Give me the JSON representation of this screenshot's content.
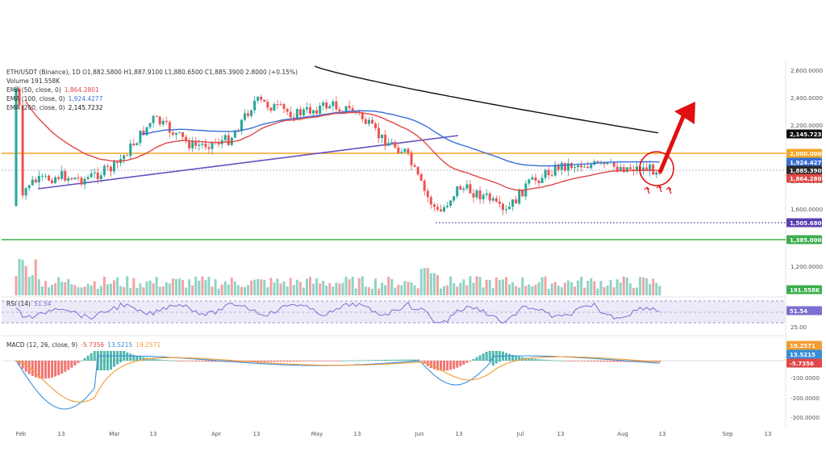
{
  "header": {
    "symbol_line": "ETH/USDT (Binance), 1D  O1,882.5800  H1,887.9100  L1,880.6500  C1,885.3900  2.8000 (+0.15%)",
    "volume_line": "Volume  191.558K",
    "ema50_label": "EMA (50, close, 0)",
    "ema50_value": "1,864.2801",
    "ema100_label": "EMA (100, close, 0)",
    "ema100_value": "1,924.4277",
    "ema200_label": "EMA (200, close, 0)",
    "ema200_value": "2,145.7232",
    "rsi_label": "RSI (14)",
    "rsi_value": "51.54",
    "macd_label": "MACD (12, 26, close, 9)",
    "macd_hist_value": "-5.7356",
    "macd_line_value": "13.5215",
    "macd_signal_value": "19.2571"
  },
  "x_axis": {
    "labels": [
      "Feb",
      "13",
      "Mar",
      "13",
      "Apr",
      "13",
      "May",
      "13",
      "Jun",
      "13",
      "Jul",
      "13",
      "Aug",
      "13",
      "Sep",
      "13"
    ]
  },
  "price_axis": {
    "ticks": [
      "2,600.0000",
      "2,400.0000",
      "2,200.0000",
      "2,000.0000",
      "1,800.0000",
      "1,600.0000",
      "1,400.0000",
      "1,200.0000"
    ]
  },
  "rsi_axis": {
    "ticks": [
      "25.00"
    ]
  },
  "macd_axis": {
    "ticks": [
      "-100.0000",
      "-200.0000",
      "-300.0000"
    ]
  },
  "price_badges": [
    {
      "text": "2,145.7232",
      "color": "#111111"
    },
    {
      "text": "2,000.0000",
      "color": "#f5a623"
    },
    {
      "text": "1,924.4277",
      "color": "#3a6fd8"
    },
    {
      "text": "1,885.3900",
      "color": "#2a2a2a"
    },
    {
      "text": "1,864.2801",
      "color": "#e04848"
    },
    {
      "text": "1,505.6800",
      "color": "#5b3fb0"
    },
    {
      "text": "1,385.0000",
      "color": "#3cae4e"
    },
    {
      "text": "191.558K",
      "color": "#3cae4e"
    },
    {
      "text": "51.54",
      "color": "#7b6fd0"
    },
    {
      "text": "19.2571",
      "color": "#f39c32"
    },
    {
      "text": "13.5215",
      "color": "#3a8ed8"
    },
    {
      "text": "-5.7356",
      "color": "#e04848"
    }
  ],
  "colors": {
    "up": "#26a69a",
    "down": "#ef5350",
    "ema50": "#e04848",
    "ema100": "#3a6fd8",
    "ema200": "#111111",
    "resistance": "#f5a623",
    "support": "#3cae4e",
    "trendline": "#6b4fbf",
    "arrow": "#e01010"
  },
  "chart_data": {
    "type": "candlestick",
    "symbol": "ETH/USDT",
    "timeframe": "1D",
    "horizontal_levels": [
      2000.0,
      1505.68,
      1385.0
    ],
    "last_values": {
      "close": 1885.39,
      "ema50": 1864.2801,
      "ema100": 1924.4277,
      "ema200": 2145.7232,
      "volume": "191.558K",
      "rsi": 51.54,
      "macd_hist": -5.7356,
      "macd": 13.5215,
      "signal": 19.2571
    },
    "price_path": [
      {
        "date": "Feb 1",
        "close": 1620
      },
      {
        "date": "Feb 3",
        "close": 1780
      },
      {
        "date": "Feb 13",
        "close": 1840
      },
      {
        "date": "Feb 20",
        "close": 1810
      },
      {
        "date": "Mar 1",
        "close": 1900
      },
      {
        "date": "Mar 13",
        "close": 2250
      },
      {
        "date": "Mar 25",
        "close": 2050
      },
      {
        "date": "Apr 5",
        "close": 2100
      },
      {
        "date": "Apr 13",
        "close": 2380
      },
      {
        "date": "Apr 25",
        "close": 2280
      },
      {
        "date": "May 5",
        "close": 2350
      },
      {
        "date": "May 13",
        "close": 2300
      },
      {
        "date": "May 20",
        "close": 2120
      },
      {
        "date": "May 28",
        "close": 2010
      },
      {
        "date": "Jun 3",
        "close": 1700
      },
      {
        "date": "Jun 7",
        "close": 1560
      },
      {
        "date": "Jun 13",
        "close": 1760
      },
      {
        "date": "Jun 22",
        "close": 1680
      },
      {
        "date": "Jun 27",
        "close": 1560
      },
      {
        "date": "Jul 3",
        "close": 1770
      },
      {
        "date": "Jul 13",
        "close": 1910
      },
      {
        "date": "Jul 20",
        "close": 1920
      },
      {
        "date": "Aug 1",
        "close": 1900
      },
      {
        "date": "Aug 10",
        "close": 1885.39
      }
    ],
    "ylim": [
      1100,
      2650
    ],
    "grid": true,
    "legend": "top-left"
  }
}
